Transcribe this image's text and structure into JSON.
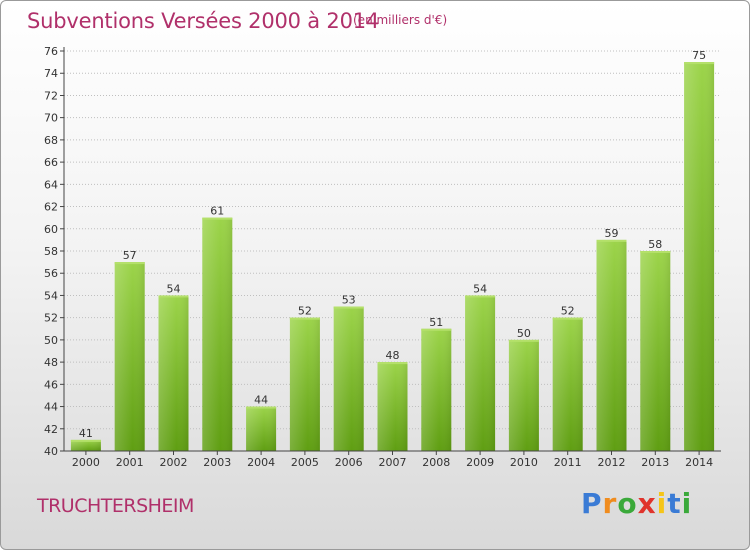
{
  "title": "Subventions Versées 2000 à 2014",
  "unit_note": "(en milliers d'€)",
  "commune": "TRUCHTERSHEIM",
  "logo": {
    "text": "Proxiti",
    "letters": [
      "P",
      "r",
      "o",
      "x",
      "i",
      "t",
      "i"
    ],
    "letter_colors": [
      "#3a7bd5",
      "#f08c1e",
      "#3aa93a",
      "#e0342c",
      "#f5c518",
      "#3a7bd5",
      "#3aa93a"
    ]
  },
  "colors": {
    "bar_top": "#9cd44a",
    "bar_bottom": "#5f9e12",
    "grid": "#bfbfbf",
    "axis": "#444444",
    "title": "#b0306a"
  },
  "chart_data": {
    "type": "bar",
    "categories": [
      "2000",
      "2001",
      "2002",
      "2003",
      "2004",
      "2005",
      "2006",
      "2007",
      "2008",
      "2009",
      "2010",
      "2011",
      "2012",
      "2013",
      "2014"
    ],
    "values": [
      41,
      57,
      54,
      61,
      44,
      52,
      53,
      48,
      51,
      54,
      50,
      52,
      59,
      58,
      75
    ],
    "ylim": [
      40,
      76
    ],
    "yticks": [
      40,
      42,
      44,
      46,
      48,
      50,
      52,
      54,
      56,
      58,
      60,
      62,
      64,
      66,
      68,
      70,
      72,
      74,
      76
    ],
    "grid": "horizontal",
    "title": "Subventions Versées 2000 à 2014",
    "xlabel": "",
    "ylabel": ""
  }
}
